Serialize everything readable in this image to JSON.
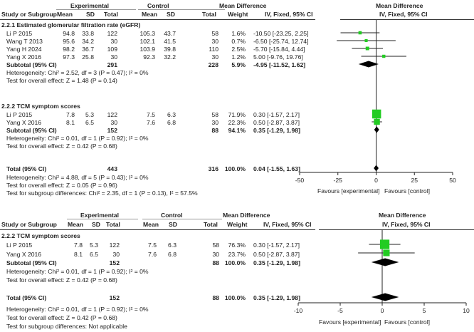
{
  "headers": {
    "study": "Study or Subgroup",
    "experimental": "Experimental",
    "control": "Control",
    "mean": "Mean",
    "sd": "SD",
    "total": "Total",
    "weight": "Weight",
    "md": "Mean Difference",
    "md_method": "IV, Fixed, 95% CI"
  },
  "panel1": {
    "groups": [
      {
        "title": "2.2.1 Estimated glomerular filtration rate (eGFR)",
        "studies": [
          {
            "name": "Li P 2015",
            "e_mean": "94.8",
            "e_sd": "33.8",
            "e_total": "122",
            "c_mean": "105.3",
            "c_sd": "43.7",
            "c_total": "58",
            "weight": "1.6%",
            "ci": "-10.50 [-23.25, 2.25]"
          },
          {
            "name": "Wang T 2013",
            "e_mean": "95.6",
            "e_sd": "34.2",
            "e_total": "30",
            "c_mean": "102.1",
            "c_sd": "41.5",
            "c_total": "30",
            "weight": "0.7%",
            "ci": "-6.50 [-25.74, 12.74]"
          },
          {
            "name": "Yang H 2024",
            "e_mean": "98.2",
            "e_sd": "36.7",
            "e_total": "109",
            "c_mean": "103.9",
            "c_sd": "39.8",
            "c_total": "110",
            "weight": "2.5%",
            "ci": "-5.70 [-15.84, 4.44]"
          },
          {
            "name": "Yang X 2016",
            "e_mean": "97.3",
            "e_sd": "25.8",
            "e_total": "30",
            "c_mean": "92.3",
            "c_sd": "32.2",
            "c_total": "30",
            "weight": "1.2%",
            "ci": "5.00 [-9.76, 19.76]"
          }
        ],
        "subtotal": {
          "label": "Subtotal (95% CI)",
          "e_total": "291",
          "c_total": "228",
          "weight": "5.9%",
          "ci": "-4.95 [-11.52, 1.62]"
        },
        "heterogeneity": "Heterogeneity: Chi² = 2.52, df = 3 (P = 0.47); I² = 0%",
        "overall": "Test for overall effect: Z = 1.48 (P = 0.14)"
      },
      {
        "title": "2.2.2 TCM symptom scores",
        "studies": [
          {
            "name": "Li P 2015",
            "e_mean": "7.8",
            "e_sd": "5.3",
            "e_total": "122",
            "c_mean": "7.5",
            "c_sd": "6.3",
            "c_total": "58",
            "weight": "71.9%",
            "ci": "0.30 [-1.57, 2.17]"
          },
          {
            "name": "Yang X 2016",
            "e_mean": "8.1",
            "e_sd": "6.5",
            "e_total": "30",
            "c_mean": "7.6",
            "c_sd": "6.8",
            "c_total": "30",
            "weight": "22.3%",
            "ci": "0.50 [-2.87, 3.87]"
          }
        ],
        "subtotal": {
          "label": "Subtotal (95% CI)",
          "e_total": "152",
          "c_total": "88",
          "weight": "94.1%",
          "ci": "0.35 [-1.29, 1.98]"
        },
        "heterogeneity": "Heterogeneity: Chi² = 0.01, df = 1 (P = 0.92); I² = 0%",
        "overall": "Test for overall effect: Z = 0.42 (P = 0.68)"
      }
    ],
    "total": {
      "label": "Total (95% CI)",
      "e_total": "443",
      "c_total": "316",
      "weight": "100.0%",
      "ci": "0.04 [-1.55, 1.63]"
    },
    "heterogeneity": "Heterogeneity: Chi² = 4.88, df = 5 (P = 0.43); I² = 0%",
    "overall": "Test for overall effect: Z = 0.05 (P = 0.96)",
    "subgroup_test": "Test for subgroup differences: Chi² = 2.35, df = 1 (P = 0.13), I² = 57.5%",
    "favours_left": "Favours [experimental]",
    "favours_right": "Favours [control]"
  },
  "panel2": {
    "groups": [
      {
        "title": "2.2.2 TCM symptom scores",
        "studies": [
          {
            "name": "Li P 2015",
            "e_mean": "7.8",
            "e_sd": "5.3",
            "e_total": "122",
            "c_mean": "7.5",
            "c_sd": "6.3",
            "c_total": "58",
            "weight": "76.3%",
            "ci": "0.30 [-1.57, 2.17]"
          },
          {
            "name": "Yang X 2016",
            "e_mean": "8.1",
            "e_sd": "6.5",
            "e_total": "30",
            "c_mean": "7.6",
            "c_sd": "6.8",
            "c_total": "30",
            "weight": "23.7%",
            "ci": "0.50 [-2.87, 3.87]"
          }
        ],
        "subtotal": {
          "label": "Subtotal (95% CI)",
          "e_total": "152",
          "c_total": "88",
          "weight": "100.0%",
          "ci": "0.35 [-1.29, 1.98]"
        },
        "heterogeneity": "Heterogeneity: Chi² = 0.01, df = 1 (P = 0.92); I² = 0%",
        "overall": "Test for overall effect: Z = 0.42 (P = 0.68)"
      }
    ],
    "total": {
      "label": "Total (95% CI)",
      "e_total": "152",
      "c_total": "88",
      "weight": "100.0%",
      "ci": "0.35 [-1.29, 1.98]"
    },
    "heterogeneity": "Heterogeneity: Chi² = 0.01, df = 1 (P = 0.92); I² = 0%",
    "overall": "Test for overall effect: Z = 0.42 (P = 0.68)",
    "subgroup_test": "Test for subgroup differences: Not applicable",
    "favours_left": "Favours [experimental]",
    "favours_right": "Favours [control]"
  },
  "chart_data": [
    {
      "type": "forest",
      "xlim": [
        -50,
        50
      ],
      "ticks": [
        -50,
        -25,
        0,
        25,
        50
      ],
      "marker_color": "#22cc22",
      "studies": [
        {
          "md": -10.5,
          "lo": -23.25,
          "hi": 2.25,
          "weight": 1.6
        },
        {
          "md": -6.5,
          "lo": -25.74,
          "hi": 12.74,
          "weight": 0.7
        },
        {
          "md": -5.7,
          "lo": -15.84,
          "hi": 4.44,
          "weight": 2.5
        },
        {
          "md": 5.0,
          "lo": -9.76,
          "hi": 19.76,
          "weight": 1.2
        },
        {
          "md": 0.3,
          "lo": -1.57,
          "hi": 2.17,
          "weight": 71.9
        },
        {
          "md": 0.5,
          "lo": -2.87,
          "hi": 3.87,
          "weight": 22.3
        }
      ],
      "diamonds": [
        {
          "md": -4.95,
          "lo": -11.52,
          "hi": 1.62
        },
        {
          "md": 0.35,
          "lo": -1.29,
          "hi": 1.98
        },
        {
          "md": 0.04,
          "lo": -1.55,
          "hi": 1.63
        }
      ]
    },
    {
      "type": "forest",
      "xlim": [
        -10,
        10
      ],
      "ticks": [
        -10,
        -5,
        0,
        5,
        10
      ],
      "marker_color": "#22cc22",
      "studies": [
        {
          "md": 0.3,
          "lo": -1.57,
          "hi": 2.17,
          "weight": 76.3
        },
        {
          "md": 0.5,
          "lo": -2.87,
          "hi": 3.87,
          "weight": 23.7
        }
      ],
      "diamonds": [
        {
          "md": 0.35,
          "lo": -1.29,
          "hi": 1.98
        },
        {
          "md": 0.35,
          "lo": -1.29,
          "hi": 1.98
        }
      ]
    }
  ]
}
